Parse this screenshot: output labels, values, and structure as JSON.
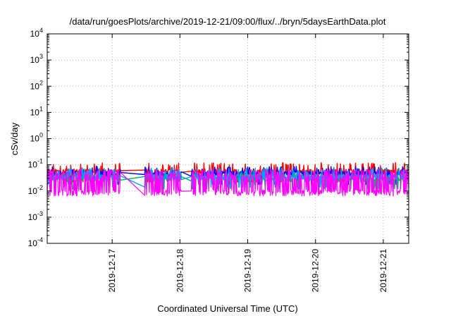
{
  "chart_data": {
    "type": "line",
    "title": "/data/run/goesPlots/archive/2019-12-21/09:00/flux/../bryn/5daysEarthData.plot",
    "xlabel": "Coordinated Universal Time (UTC)",
    "ylabel": "cSv/day",
    "yscale": "log",
    "ylim": [
      0.0001,
      10000
    ],
    "yticks": [
      {
        "value": 0.0001,
        "base": "10",
        "exp": "-4"
      },
      {
        "value": 0.001,
        "base": "10",
        "exp": "-3"
      },
      {
        "value": 0.01,
        "base": "10",
        "exp": "-2"
      },
      {
        "value": 0.1,
        "base": "10",
        "exp": "-1"
      },
      {
        "value": 1,
        "base": "10",
        "exp": "0"
      },
      {
        "value": 10,
        "base": "10",
        "exp": "1"
      },
      {
        "value": 100,
        "base": "10",
        "exp": "2"
      },
      {
        "value": 1000,
        "base": "10",
        "exp": "3"
      },
      {
        "value": 10000,
        "base": "10",
        "exp": "4"
      }
    ],
    "xlim": [
      "2019-12-16 01:00",
      "2019-12-21 09:00"
    ],
    "xticks": [
      "2019-12-17",
      "2019-12-18",
      "2019-12-19",
      "2019-12-20",
      "2019-12-21"
    ],
    "grid": true,
    "gaps": [
      [
        "2019-12-17 03:00",
        "2019-12-17 11:30"
      ],
      [
        "2019-12-18 00:30",
        "2019-12-18 04:00"
      ]
    ],
    "series": [
      {
        "color": "#ff0000",
        "typical": 0.055,
        "high": 0.11
      },
      {
        "color": "#0000ff",
        "typical": 0.045,
        "high": 0.08
      },
      {
        "color": "#00b060",
        "typical": 0.03,
        "high": 0.05
      },
      {
        "color": "#00a0ff",
        "typical": 0.035,
        "high": 0.07
      },
      {
        "color": "#ff00ff",
        "typical": 0.008,
        "high": 0.06
      }
    ]
  }
}
